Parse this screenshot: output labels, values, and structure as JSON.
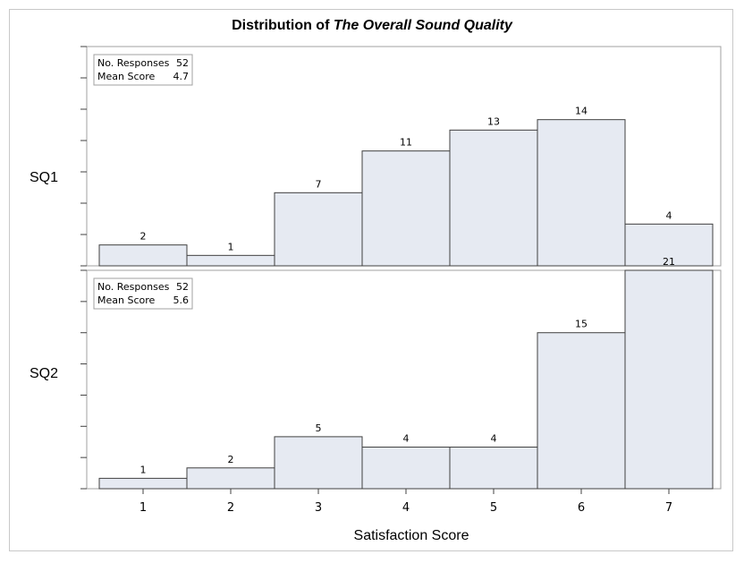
{
  "title_prefix": "Distribution of ",
  "title_italic": "The Overall Sound Quality",
  "chart_data": {
    "type": "bar",
    "categories": [
      "1",
      "2",
      "3",
      "4",
      "5",
      "6",
      "7"
    ],
    "xlabel": "Satisfaction Score",
    "ylim": [
      0,
      21
    ],
    "grid": false,
    "bar_fill": "#e6eaf2",
    "bar_stroke": "#404040",
    "panels": [
      {
        "label": "SQ1",
        "values": [
          2,
          1,
          7,
          11,
          13,
          14,
          4
        ],
        "stats": {
          "responses_label": "No. Responses",
          "responses": "52",
          "mean_label": "Mean Score",
          "mean": "4.7"
        }
      },
      {
        "label": "SQ2",
        "values": [
          1,
          2,
          5,
          4,
          4,
          15,
          21
        ],
        "stats": {
          "responses_label": "No. Responses",
          "responses": "52",
          "mean_label": "Mean Score",
          "mean": "5.6"
        }
      }
    ]
  }
}
